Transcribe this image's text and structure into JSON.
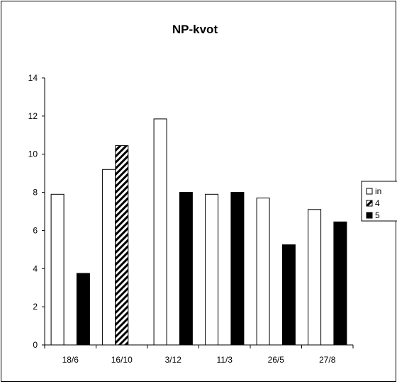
{
  "chart_data": {
    "type": "bar",
    "title": "NP-kvot",
    "categories": [
      "18/6",
      "16/10",
      "3/12",
      "11/3",
      "26/5",
      "27/8"
    ],
    "ylim": [
      0,
      14
    ],
    "yticks": [
      0,
      2,
      4,
      6,
      8,
      10,
      12,
      14
    ],
    "grid": false,
    "legend_position": "right",
    "series": [
      {
        "name": "in",
        "pattern": "white",
        "values": [
          7.9,
          9.2,
          11.85,
          7.9,
          7.7,
          7.1
        ]
      },
      {
        "name": "4",
        "pattern": "diagonal-hatch",
        "values": [
          null,
          10.45,
          null,
          null,
          null,
          null
        ]
      },
      {
        "name": "5",
        "pattern": "black",
        "values": [
          3.75,
          null,
          8.0,
          8.0,
          5.25,
          6.45
        ]
      }
    ]
  }
}
